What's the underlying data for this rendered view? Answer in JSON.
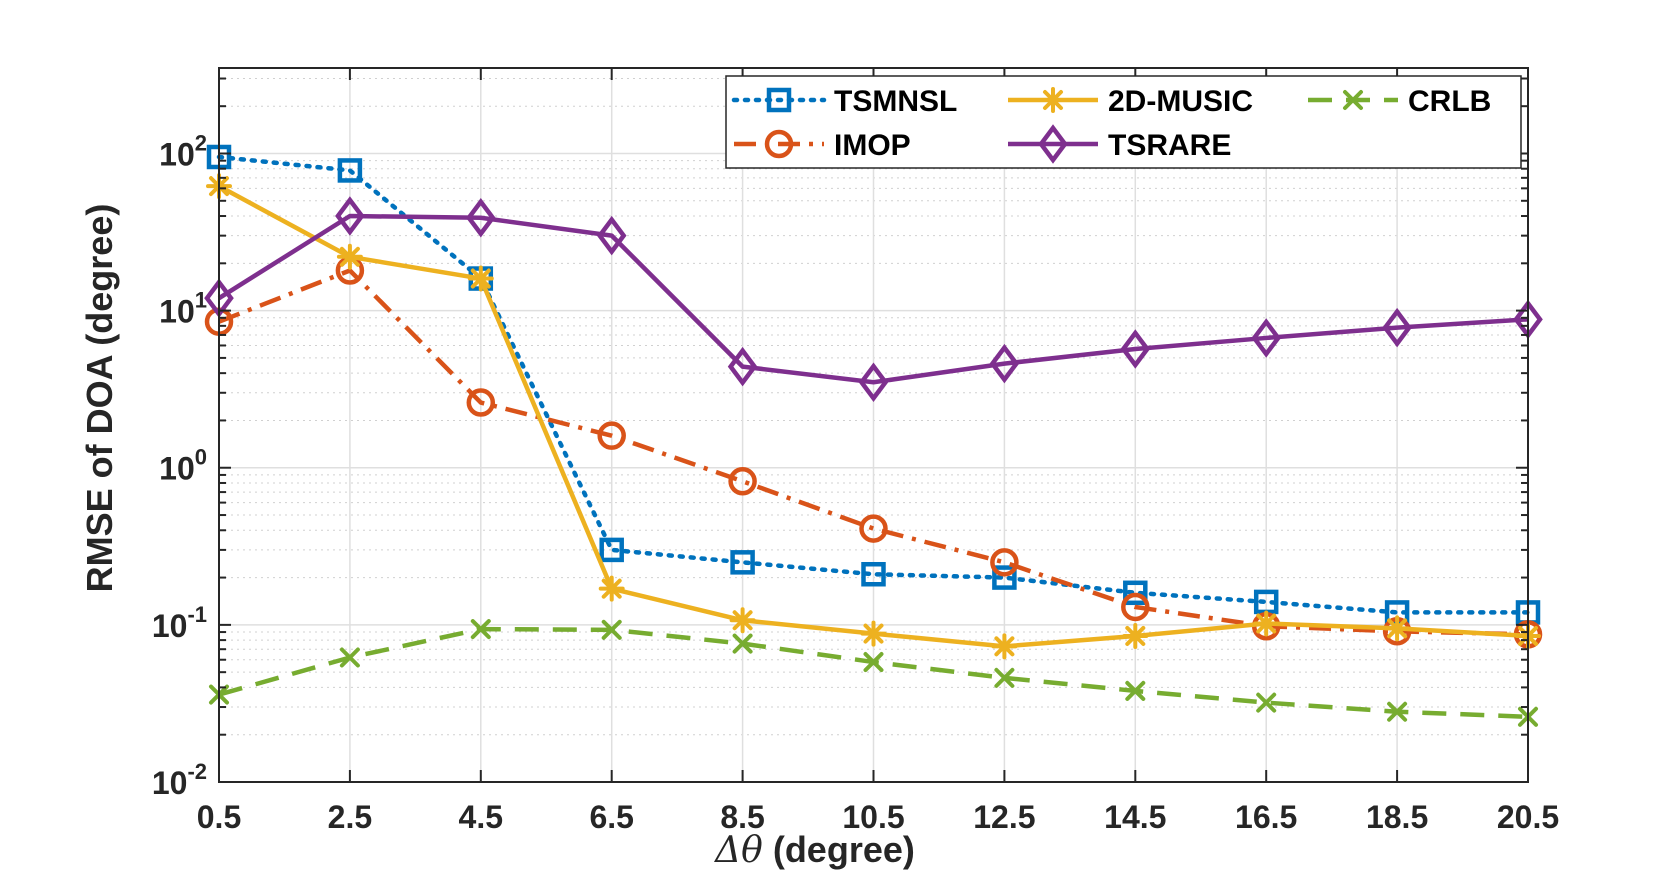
{
  "chart_data": {
    "type": "line",
    "xlabel_symbol": "Δθ",
    "xlabel_unit": "(degree)",
    "ylabel": "RMSE of DOA (degree)",
    "x": [
      0.5,
      2.5,
      4.5,
      6.5,
      8.5,
      10.5,
      12.5,
      14.5,
      16.5,
      18.5,
      20.5
    ],
    "x_tick_labels": [
      "0.5",
      "2.5",
      "4.5",
      "6.5",
      "8.5",
      "10.5",
      "12.5",
      "14.5",
      "16.5",
      "18.5",
      "20.5"
    ],
    "xlim": [
      0.5,
      20.5
    ],
    "yscale": "log",
    "ylim": [
      0.01,
      350
    ],
    "y_ticks": [
      {
        "value": 0.01,
        "base": "10",
        "exp": "-2"
      },
      {
        "value": 0.1,
        "base": "10",
        "exp": "-1"
      },
      {
        "value": 1,
        "base": "10",
        "exp": "0"
      },
      {
        "value": 10,
        "base": "10",
        "exp": "1"
      },
      {
        "value": 100,
        "base": "10",
        "exp": "2"
      }
    ],
    "grid": true,
    "legend_position": "top-right",
    "series": [
      {
        "name": "TSMNSL",
        "color": "#0072BD",
        "style": "dotted",
        "marker": "square",
        "values": [
          95,
          78,
          16,
          0.3,
          0.25,
          0.21,
          0.2,
          0.16,
          0.14,
          0.12,
          0.12
        ]
      },
      {
        "name": "IMOP",
        "color": "#D95319",
        "style": "dashdot",
        "marker": "circle",
        "values": [
          8.5,
          18,
          2.6,
          1.6,
          0.82,
          0.41,
          0.25,
          0.13,
          0.098,
          0.091,
          0.087
        ]
      },
      {
        "name": "2D-MUSIC",
        "color": "#EDB120",
        "style": "solid",
        "marker": "asterisk",
        "values": [
          62,
          22,
          16,
          0.17,
          0.107,
          0.088,
          0.073,
          0.085,
          0.102,
          0.095,
          0.085
        ]
      },
      {
        "name": "TSRARE",
        "color": "#7E2F8E",
        "style": "solid",
        "marker": "diamond",
        "values": [
          12,
          40,
          39,
          30,
          4.4,
          3.5,
          4.6,
          5.7,
          6.7,
          7.8,
          8.8
        ]
      },
      {
        "name": "CRLB",
        "color": "#77AC30",
        "style": "dashed",
        "marker": "x",
        "values": [
          0.036,
          0.062,
          0.094,
          0.093,
          0.076,
          0.058,
          0.046,
          0.038,
          0.032,
          0.028,
          0.026
        ]
      }
    ]
  }
}
